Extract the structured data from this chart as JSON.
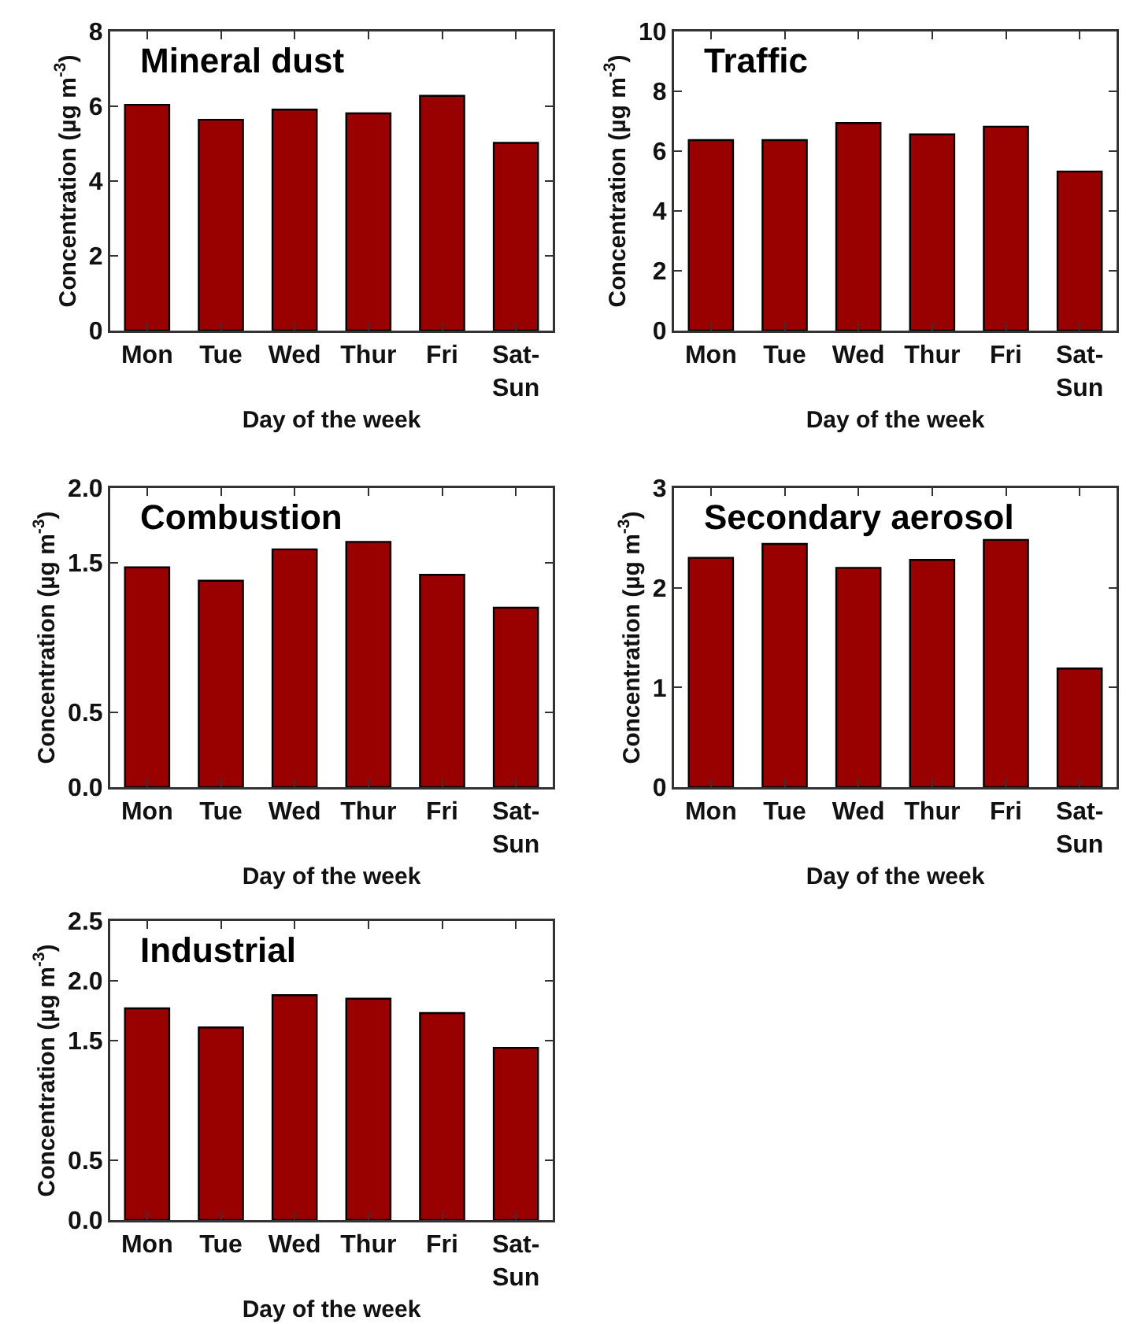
{
  "chart_data": [
    {
      "type": "bar",
      "title": "Mineral dust",
      "xlabel": "Day of the week",
      "ylabel": "Concentration (µg m$^{-3}$)",
      "categories": [
        "Mon",
        "Tue",
        "Wed",
        "Thur",
        "Fri",
        "Sat-\nSun"
      ],
      "values": [
        6.04,
        5.64,
        5.91,
        5.81,
        6.28,
        5.02
      ],
      "color": "#990000",
      "ylim": [
        0,
        8
      ],
      "yticks": [
        0,
        2,
        4,
        6,
        8
      ],
      "grid": false
    },
    {
      "type": "bar",
      "title": "Traffic",
      "xlabel": "Day of the week",
      "ylabel": "Concentration (µg m$^{-3}$)",
      "categories": [
        "Mon",
        "Tue",
        "Wed",
        "Thur",
        "Fri",
        "Sat-\nSun"
      ],
      "values": [
        6.37,
        6.37,
        6.94,
        6.56,
        6.82,
        5.32
      ],
      "color": "#990000",
      "ylim": [
        0,
        10
      ],
      "yticks": [
        0,
        2,
        4,
        6,
        8,
        10
      ],
      "grid": false
    },
    {
      "type": "bar",
      "title": "Combustion",
      "xlabel": "Day of the week",
      "ylabel": "Concentration (µg m$^{-3}$)",
      "categories": [
        "Mon",
        "Tue",
        "Wed",
        "Thur",
        "Fri",
        "Sat-\nSun"
      ],
      "values": [
        1.47,
        1.38,
        1.59,
        1.64,
        1.42,
        1.2
      ],
      "color": "#990000",
      "ylim": [
        0,
        2
      ],
      "yticks": [
        {
          "value": 0,
          "label": "0.0"
        },
        {
          "value": 0.5,
          "label": "0.5"
        },
        {
          "value": 1.5,
          "label": "1.5"
        },
        {
          "value": 2,
          "label": "2.0"
        }
      ],
      "grid": false
    },
    {
      "type": "bar",
      "title": "Secondary aerosol",
      "xlabel": "Day of the week",
      "ylabel": "Concentration (µg m$^{-3}$)",
      "categories": [
        "Mon",
        "Tue",
        "Wed",
        "Thur",
        "Fri",
        "Sat-\nSun"
      ],
      "values": [
        2.3,
        2.44,
        2.2,
        2.28,
        2.48,
        1.19
      ],
      "color": "#990000",
      "ylim": [
        0,
        3
      ],
      "yticks": [
        0,
        1,
        2,
        3
      ],
      "grid": false
    },
    {
      "type": "bar",
      "title": "Industrial",
      "xlabel": "Day of the week",
      "ylabel": "Concentration (µg m$^{-3}$)",
      "categories": [
        "Mon",
        "Tue",
        "Wed",
        "Thur",
        "Fri",
        "Sat-\nSun"
      ],
      "values": [
        1.77,
        1.61,
        1.88,
        1.85,
        1.73,
        1.44
      ],
      "color": "#990000",
      "ylim": [
        0,
        2.5
      ],
      "yticks": [
        {
          "value": 0,
          "label": "0.0"
        },
        {
          "value": 0.5,
          "label": "0.5"
        },
        {
          "value": 1.5,
          "label": "1.5"
        },
        {
          "value": 2,
          "label": "2.0"
        },
        {
          "value": 2.5,
          "label": "2.5"
        }
      ],
      "grid": false
    }
  ]
}
